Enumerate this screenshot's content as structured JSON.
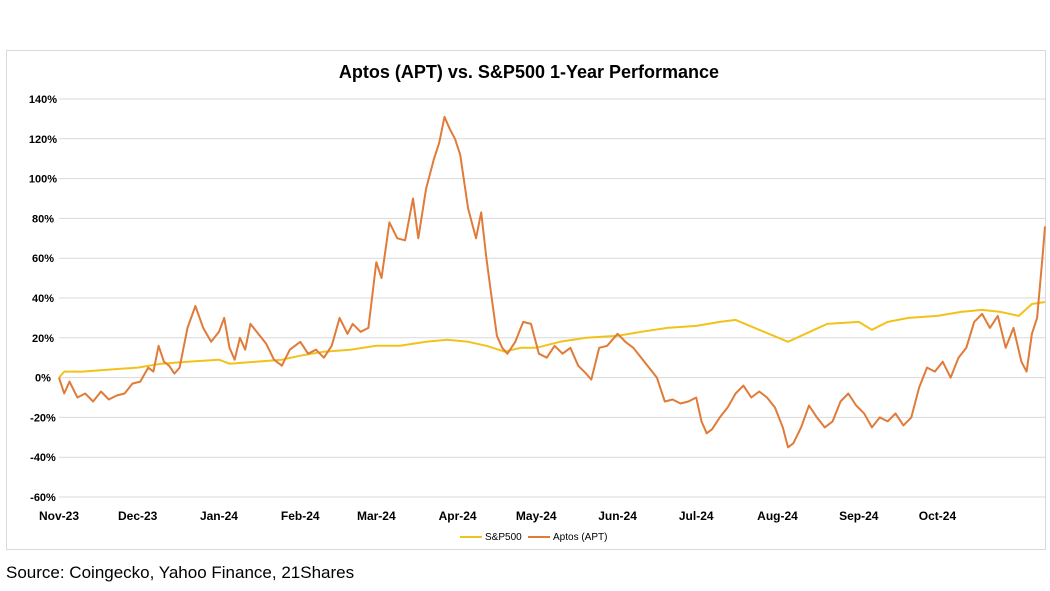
{
  "chart_data": {
    "type": "line",
    "title": "Aptos (APT) vs. S&P500  1-Year Performance",
    "xlabel": "",
    "ylabel": "",
    "x_ticks": [
      "Nov-23",
      "Dec-23",
      "Jan-24",
      "Feb-24",
      "Mar-24",
      "Apr-24",
      "May-24",
      "Jun-24",
      "Jul-24",
      "Aug-24",
      "Sep-24",
      "Oct-24"
    ],
    "x_range": [
      "2023-11-01",
      "2024-11-11"
    ],
    "y_ticks": [
      "140%",
      "120%",
      "100%",
      "80%",
      "60%",
      "40%",
      "20%",
      "0%",
      "-20%",
      "-40%",
      "-60%"
    ],
    "ylim": [
      -60,
      140
    ],
    "grid": "horizontal",
    "legend": "bottom-center",
    "series": [
      {
        "name": "S&P500",
        "color": "#f2c21b",
        "points": [
          [
            "2023-11-01",
            0
          ],
          [
            "2023-11-03",
            3
          ],
          [
            "2023-11-10",
            3
          ],
          [
            "2023-11-20",
            4
          ],
          [
            "2023-12-01",
            5
          ],
          [
            "2023-12-10",
            7
          ],
          [
            "2023-12-20",
            8
          ],
          [
            "2024-01-01",
            9
          ],
          [
            "2024-01-05",
            7
          ],
          [
            "2024-01-15",
            8
          ],
          [
            "2024-01-25",
            9
          ],
          [
            "2024-02-01",
            11
          ],
          [
            "2024-02-10",
            13
          ],
          [
            "2024-02-20",
            14
          ],
          [
            "2024-03-01",
            16
          ],
          [
            "2024-03-10",
            16
          ],
          [
            "2024-03-20",
            18
          ],
          [
            "2024-03-28",
            19
          ],
          [
            "2024-04-05",
            18
          ],
          [
            "2024-04-12",
            16
          ],
          [
            "2024-04-19",
            13
          ],
          [
            "2024-04-25",
            15
          ],
          [
            "2024-05-01",
            15
          ],
          [
            "2024-05-10",
            18
          ],
          [
            "2024-05-20",
            20
          ],
          [
            "2024-06-01",
            21
          ],
          [
            "2024-06-10",
            23
          ],
          [
            "2024-06-20",
            25
          ],
          [
            "2024-07-01",
            26
          ],
          [
            "2024-07-10",
            28
          ],
          [
            "2024-07-16",
            29
          ],
          [
            "2024-07-25",
            24
          ],
          [
            "2024-08-05",
            18
          ],
          [
            "2024-08-15",
            24
          ],
          [
            "2024-08-20",
            27
          ],
          [
            "2024-09-01",
            28
          ],
          [
            "2024-09-06",
            24
          ],
          [
            "2024-09-12",
            28
          ],
          [
            "2024-09-20",
            30
          ],
          [
            "2024-10-01",
            31
          ],
          [
            "2024-10-10",
            33
          ],
          [
            "2024-10-18",
            34
          ],
          [
            "2024-10-25",
            33
          ],
          [
            "2024-11-01",
            31
          ],
          [
            "2024-11-06",
            37
          ],
          [
            "2024-11-11",
            38
          ]
        ]
      },
      {
        "name": "Aptos (APT)",
        "color": "#e07b39",
        "points": [
          [
            "2023-11-01",
            0
          ],
          [
            "2023-11-03",
            -8
          ],
          [
            "2023-11-05",
            -2
          ],
          [
            "2023-11-08",
            -10
          ],
          [
            "2023-11-11",
            -8
          ],
          [
            "2023-11-14",
            -12
          ],
          [
            "2023-11-17",
            -7
          ],
          [
            "2023-11-20",
            -11
          ],
          [
            "2023-11-23",
            -9
          ],
          [
            "2023-11-26",
            -8
          ],
          [
            "2023-11-29",
            -3
          ],
          [
            "2023-12-02",
            -2
          ],
          [
            "2023-12-05",
            5
          ],
          [
            "2023-12-07",
            3
          ],
          [
            "2023-12-09",
            16
          ],
          [
            "2023-12-11",
            8
          ],
          [
            "2023-12-13",
            6
          ],
          [
            "2023-12-15",
            2
          ],
          [
            "2023-12-17",
            5
          ],
          [
            "2023-12-20",
            25
          ],
          [
            "2023-12-23",
            36
          ],
          [
            "2023-12-26",
            25
          ],
          [
            "2023-12-29",
            18
          ],
          [
            "2024-01-01",
            23
          ],
          [
            "2024-01-03",
            30
          ],
          [
            "2024-01-05",
            15
          ],
          [
            "2024-01-07",
            9
          ],
          [
            "2024-01-09",
            20
          ],
          [
            "2024-01-11",
            14
          ],
          [
            "2024-01-13",
            27
          ],
          [
            "2024-01-16",
            22
          ],
          [
            "2024-01-19",
            17
          ],
          [
            "2024-01-22",
            9
          ],
          [
            "2024-01-25",
            6
          ],
          [
            "2024-01-28",
            14
          ],
          [
            "2024-02-01",
            18
          ],
          [
            "2024-02-04",
            12
          ],
          [
            "2024-02-07",
            14
          ],
          [
            "2024-02-10",
            10
          ],
          [
            "2024-02-13",
            16
          ],
          [
            "2024-02-16",
            30
          ],
          [
            "2024-02-19",
            22
          ],
          [
            "2024-02-21",
            27
          ],
          [
            "2024-02-24",
            23
          ],
          [
            "2024-02-27",
            25
          ],
          [
            "2024-03-01",
            58
          ],
          [
            "2024-03-03",
            50
          ],
          [
            "2024-03-06",
            78
          ],
          [
            "2024-03-09",
            70
          ],
          [
            "2024-03-12",
            69
          ],
          [
            "2024-03-15",
            90
          ],
          [
            "2024-03-17",
            70
          ],
          [
            "2024-03-20",
            95
          ],
          [
            "2024-03-23",
            110
          ],
          [
            "2024-03-25",
            118
          ],
          [
            "2024-03-27",
            131
          ],
          [
            "2024-03-29",
            125
          ],
          [
            "2024-03-31",
            120
          ],
          [
            "2024-04-02",
            112
          ],
          [
            "2024-04-05",
            85
          ],
          [
            "2024-04-08",
            70
          ],
          [
            "2024-04-10",
            83
          ],
          [
            "2024-04-12",
            60
          ],
          [
            "2024-04-14",
            40
          ],
          [
            "2024-04-16",
            21
          ],
          [
            "2024-04-18",
            15
          ],
          [
            "2024-04-20",
            12
          ],
          [
            "2024-04-23",
            18
          ],
          [
            "2024-04-26",
            28
          ],
          [
            "2024-04-29",
            27
          ],
          [
            "2024-05-02",
            12
          ],
          [
            "2024-05-05",
            10
          ],
          [
            "2024-05-08",
            16
          ],
          [
            "2024-05-11",
            12
          ],
          [
            "2024-05-14",
            15
          ],
          [
            "2024-05-17",
            6
          ],
          [
            "2024-05-20",
            2
          ],
          [
            "2024-05-22",
            -1
          ],
          [
            "2024-05-25",
            15
          ],
          [
            "2024-05-28",
            16
          ],
          [
            "2024-06-01",
            22
          ],
          [
            "2024-06-04",
            18
          ],
          [
            "2024-06-07",
            15
          ],
          [
            "2024-06-10",
            10
          ],
          [
            "2024-06-13",
            5
          ],
          [
            "2024-06-16",
            0
          ],
          [
            "2024-06-19",
            -12
          ],
          [
            "2024-06-22",
            -11
          ],
          [
            "2024-06-25",
            -13
          ],
          [
            "2024-06-28",
            -12
          ],
          [
            "2024-07-01",
            -10
          ],
          [
            "2024-07-03",
            -22
          ],
          [
            "2024-07-05",
            -28
          ],
          [
            "2024-07-07",
            -26
          ],
          [
            "2024-07-10",
            -20
          ],
          [
            "2024-07-13",
            -15
          ],
          [
            "2024-07-16",
            -8
          ],
          [
            "2024-07-19",
            -4
          ],
          [
            "2024-07-22",
            -10
          ],
          [
            "2024-07-25",
            -7
          ],
          [
            "2024-07-28",
            -10
          ],
          [
            "2024-07-31",
            -15
          ],
          [
            "2024-08-03",
            -25
          ],
          [
            "2024-08-05",
            -35
          ],
          [
            "2024-08-07",
            -33
          ],
          [
            "2024-08-10",
            -25
          ],
          [
            "2024-08-13",
            -14
          ],
          [
            "2024-08-16",
            -20
          ],
          [
            "2024-08-19",
            -25
          ],
          [
            "2024-08-22",
            -22
          ],
          [
            "2024-08-25",
            -12
          ],
          [
            "2024-08-28",
            -8
          ],
          [
            "2024-08-31",
            -14
          ],
          [
            "2024-09-03",
            -18
          ],
          [
            "2024-09-06",
            -25
          ],
          [
            "2024-09-09",
            -20
          ],
          [
            "2024-09-12",
            -22
          ],
          [
            "2024-09-15",
            -18
          ],
          [
            "2024-09-18",
            -24
          ],
          [
            "2024-09-21",
            -20
          ],
          [
            "2024-09-24",
            -5
          ],
          [
            "2024-09-27",
            5
          ],
          [
            "2024-09-30",
            3
          ],
          [
            "2024-10-03",
            8
          ],
          [
            "2024-10-06",
            0
          ],
          [
            "2024-10-09",
            10
          ],
          [
            "2024-10-12",
            15
          ],
          [
            "2024-10-15",
            28
          ],
          [
            "2024-10-18",
            32
          ],
          [
            "2024-10-21",
            25
          ],
          [
            "2024-10-24",
            31
          ],
          [
            "2024-10-27",
            15
          ],
          [
            "2024-10-30",
            25
          ],
          [
            "2024-11-02",
            8
          ],
          [
            "2024-11-04",
            3
          ],
          [
            "2024-11-06",
            22
          ],
          [
            "2024-11-08",
            30
          ],
          [
            "2024-11-10",
            60
          ],
          [
            "2024-11-11",
            76
          ]
        ]
      }
    ]
  },
  "footer": {
    "source": "Source: Coingecko, Yahoo Finance, 21Shares"
  }
}
